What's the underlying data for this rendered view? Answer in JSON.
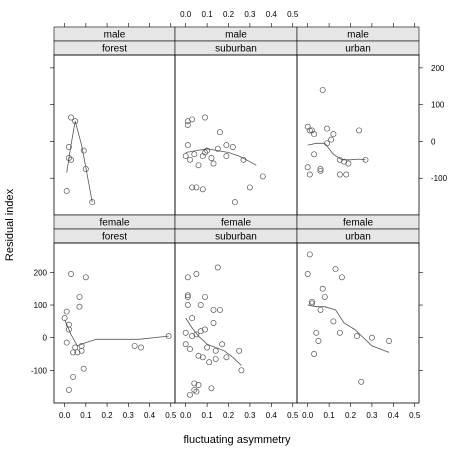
{
  "chart_data": {
    "type": "scatter",
    "xlabel": "fluctuating asymmetry",
    "ylabel": "Residual index",
    "xlim": [
      -0.05,
      0.52
    ],
    "x_ticks": [
      0.0,
      0.1,
      0.2,
      0.3,
      0.4,
      0.5
    ],
    "x_tick_labels": [
      "0.0",
      "0.1",
      "0.2",
      "0.3",
      "0.4",
      "0.5"
    ],
    "rows": [
      {
        "ylim": [
          -200,
          235
        ],
        "y_ticks": [
          -100,
          0,
          100,
          200
        ],
        "y_tick_labels": [
          "-100",
          "0",
          "100",
          "200"
        ],
        "panels": [
          {
            "strip": [
              "male",
              "forest"
            ],
            "points": [
              [
                0.01,
                -135
              ],
              [
                0.02,
                -15
              ],
              [
                0.02,
                -45
              ],
              [
                0.03,
                65
              ],
              [
                0.03,
                -50
              ],
              [
                0.05,
                55
              ],
              [
                0.09,
                -25
              ],
              [
                0.1,
                -75
              ],
              [
                0.13,
                -165
              ]
            ],
            "smooth": [
              [
                0.01,
                -85
              ],
              [
                0.03,
                -10
              ],
              [
                0.05,
                55
              ],
              [
                0.08,
                -10
              ],
              [
                0.1,
                -70
              ],
              [
                0.13,
                -165
              ]
            ]
          },
          {
            "strip": [
              "male",
              "suburban"
            ],
            "points": [
              [
                0.01,
                55
              ],
              [
                0.01,
                45
              ],
              [
                0.0,
                -40
              ],
              [
                0.01,
                -10
              ],
              [
                0.02,
                -50
              ],
              [
                0.03,
                60
              ],
              [
                0.04,
                -35
              ],
              [
                0.03,
                -125
              ],
              [
                0.05,
                -125
              ],
              [
                0.06,
                -65
              ],
              [
                0.08,
                -40
              ],
              [
                0.08,
                -130
              ],
              [
                0.09,
                -30
              ],
              [
                0.09,
                65
              ],
              [
                0.1,
                -25
              ],
              [
                0.12,
                -45
              ],
              [
                0.13,
                -60
              ],
              [
                0.15,
                -20
              ],
              [
                0.16,
                25
              ],
              [
                0.19,
                -10
              ],
              [
                0.19,
                -40
              ],
              [
                0.22,
                -15
              ],
              [
                0.23,
                -165
              ],
              [
                0.27,
                -50
              ],
              [
                0.3,
                -125
              ],
              [
                0.36,
                -95
              ]
            ],
            "smooth": [
              [
                0.0,
                -30
              ],
              [
                0.05,
                -25
              ],
              [
                0.1,
                -20
              ],
              [
                0.15,
                -25
              ],
              [
                0.2,
                -30
              ],
              [
                0.25,
                -40
              ],
              [
                0.3,
                -55
              ],
              [
                0.33,
                -65
              ]
            ]
          },
          {
            "strip": [
              "male",
              "urban"
            ],
            "points": [
              [
                0.0,
                40
              ],
              [
                0.01,
                30
              ],
              [
                0.02,
                30
              ],
              [
                0.03,
                20
              ],
              [
                0.0,
                -70
              ],
              [
                0.01,
                -90
              ],
              [
                0.03,
                -35
              ],
              [
                0.06,
                -75
              ],
              [
                0.06,
                -80
              ],
              [
                0.07,
                140
              ],
              [
                0.09,
                35
              ],
              [
                0.09,
                -5
              ],
              [
                0.11,
                5
              ],
              [
                0.12,
                20
              ],
              [
                0.15,
                -50
              ],
              [
                0.15,
                -90
              ],
              [
                0.17,
                -55
              ],
              [
                0.18,
                -90
              ],
              [
                0.19,
                -60
              ],
              [
                0.24,
                30
              ],
              [
                0.27,
                -50
              ]
            ],
            "smooth": [
              [
                0.0,
                -10
              ],
              [
                0.04,
                -5
              ],
              [
                0.08,
                -5
              ],
              [
                0.12,
                -35
              ],
              [
                0.16,
                -50
              ],
              [
                0.2,
                -50
              ],
              [
                0.24,
                -48
              ],
              [
                0.27,
                -50
              ]
            ]
          }
        ]
      },
      {
        "ylim": [
          -200,
          290
        ],
        "y_ticks": [
          -100,
          0,
          100,
          200
        ],
        "y_tick_labels": [
          "-100",
          "0",
          "100",
          "200"
        ],
        "panels": [
          {
            "strip": [
              "female",
              "forest"
            ],
            "points": [
              [
                0.0,
                60
              ],
              [
                0.01,
                80
              ],
              [
                0.02,
                40
              ],
              [
                0.02,
                25
              ],
              [
                0.01,
                -15
              ],
              [
                0.02,
                -160
              ],
              [
                0.03,
                195
              ],
              [
                0.04,
                -45
              ],
              [
                0.04,
                -120
              ],
              [
                0.05,
                -30
              ],
              [
                0.06,
                -45
              ],
              [
                0.07,
                125
              ],
              [
                0.07,
                95
              ],
              [
                0.08,
                -40
              ],
              [
                0.08,
                -25
              ],
              [
                0.09,
                -95
              ],
              [
                0.1,
                185
              ],
              [
                0.33,
                -25
              ],
              [
                0.36,
                -30
              ],
              [
                0.49,
                5
              ]
            ],
            "smooth": [
              [
                0.0,
                55
              ],
              [
                0.03,
                10
              ],
              [
                0.06,
                -25
              ],
              [
                0.1,
                -15
              ],
              [
                0.15,
                -5
              ],
              [
                0.25,
                -5
              ],
              [
                0.35,
                -5
              ],
              [
                0.49,
                5
              ]
            ]
          },
          {
            "strip": [
              "female",
              "suburban"
            ],
            "points": [
              [
                0.0,
                15
              ],
              [
                0.0,
                -20
              ],
              [
                0.01,
                185
              ],
              [
                0.01,
                125
              ],
              [
                0.01,
                130
              ],
              [
                0.01,
                100
              ],
              [
                0.02,
                -35
              ],
              [
                0.02,
                -175
              ],
              [
                0.03,
                60
              ],
              [
                0.03,
                5
              ],
              [
                0.04,
                -160
              ],
              [
                0.04,
                -140
              ],
              [
                0.05,
                195
              ],
              [
                0.05,
                10
              ],
              [
                0.05,
                -165
              ],
              [
                0.06,
                -145
              ],
              [
                0.06,
                -55
              ],
              [
                0.07,
                100
              ],
              [
                0.07,
                20
              ],
              [
                0.08,
                -60
              ],
              [
                0.09,
                125
              ],
              [
                0.09,
                25
              ],
              [
                0.1,
                -30
              ],
              [
                0.11,
                -75
              ],
              [
                0.12,
                -155
              ],
              [
                0.13,
                85
              ],
              [
                0.13,
                45
              ],
              [
                0.14,
                -40
              ],
              [
                0.14,
                -65
              ],
              [
                0.15,
                215
              ],
              [
                0.16,
                85
              ],
              [
                0.17,
                -20
              ],
              [
                0.19,
                -60
              ],
              [
                0.25,
                -40
              ],
              [
                0.26,
                -100
              ]
            ],
            "smooth": [
              [
                0.0,
                60
              ],
              [
                0.03,
                30
              ],
              [
                0.06,
                5
              ],
              [
                0.1,
                -20
              ],
              [
                0.14,
                -30
              ],
              [
                0.18,
                -40
              ],
              [
                0.22,
                -60
              ],
              [
                0.26,
                -85
              ]
            ]
          },
          {
            "strip": [
              "female",
              "urban"
            ],
            "points": [
              [
                0.0,
                195
              ],
              [
                0.01,
                255
              ],
              [
                0.02,
                110
              ],
              [
                0.02,
                105
              ],
              [
                0.03,
                -50
              ],
              [
                0.04,
                15
              ],
              [
                0.05,
                -10
              ],
              [
                0.06,
                85
              ],
              [
                0.07,
                150
              ],
              [
                0.08,
                125
              ],
              [
                0.12,
                50
              ],
              [
                0.13,
                210
              ],
              [
                0.15,
                15
              ],
              [
                0.16,
                185
              ],
              [
                0.23,
                5
              ],
              [
                0.25,
                -135
              ],
              [
                0.3,
                0
              ],
              [
                0.38,
                -10
              ]
            ],
            "smooth": [
              [
                0.0,
                100
              ],
              [
                0.04,
                95
              ],
              [
                0.08,
                95
              ],
              [
                0.13,
                85
              ],
              [
                0.17,
                45
              ],
              [
                0.22,
                25
              ],
              [
                0.3,
                -25
              ],
              [
                0.38,
                -45
              ]
            ]
          }
        ]
      }
    ]
  }
}
